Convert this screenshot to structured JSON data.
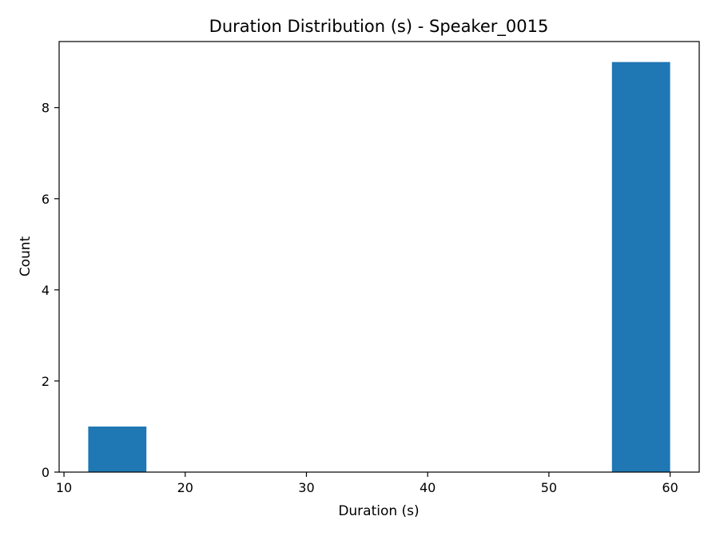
{
  "chart_data": {
    "type": "bar",
    "title": "Duration Distribution (s) - Speaker_0015",
    "xlabel": "Duration (s)",
    "ylabel": "Count",
    "bins": [
      {
        "x0": 12.0,
        "x1": 16.8,
        "count": 1
      },
      {
        "x0": 16.8,
        "x1": 21.6,
        "count": 0
      },
      {
        "x0": 21.6,
        "x1": 26.4,
        "count": 0
      },
      {
        "x0": 26.4,
        "x1": 31.2,
        "count": 0
      },
      {
        "x0": 31.2,
        "x1": 36.0,
        "count": 0
      },
      {
        "x0": 36.0,
        "x1": 40.8,
        "count": 0
      },
      {
        "x0": 40.8,
        "x1": 45.6,
        "count": 0
      },
      {
        "x0": 45.6,
        "x1": 50.4,
        "count": 0
      },
      {
        "x0": 50.4,
        "x1": 55.2,
        "count": 0
      },
      {
        "x0": 55.2,
        "x1": 60.0,
        "count": 9
      }
    ],
    "xlim": [
      9.6,
      62.4
    ],
    "ylim": [
      0,
      9.45
    ],
    "xticks": [
      10,
      20,
      30,
      40,
      50,
      60
    ],
    "yticks": [
      0,
      2,
      4,
      6,
      8
    ],
    "bar_color": "#1f77b4",
    "grid": false,
    "legend": "none"
  }
}
